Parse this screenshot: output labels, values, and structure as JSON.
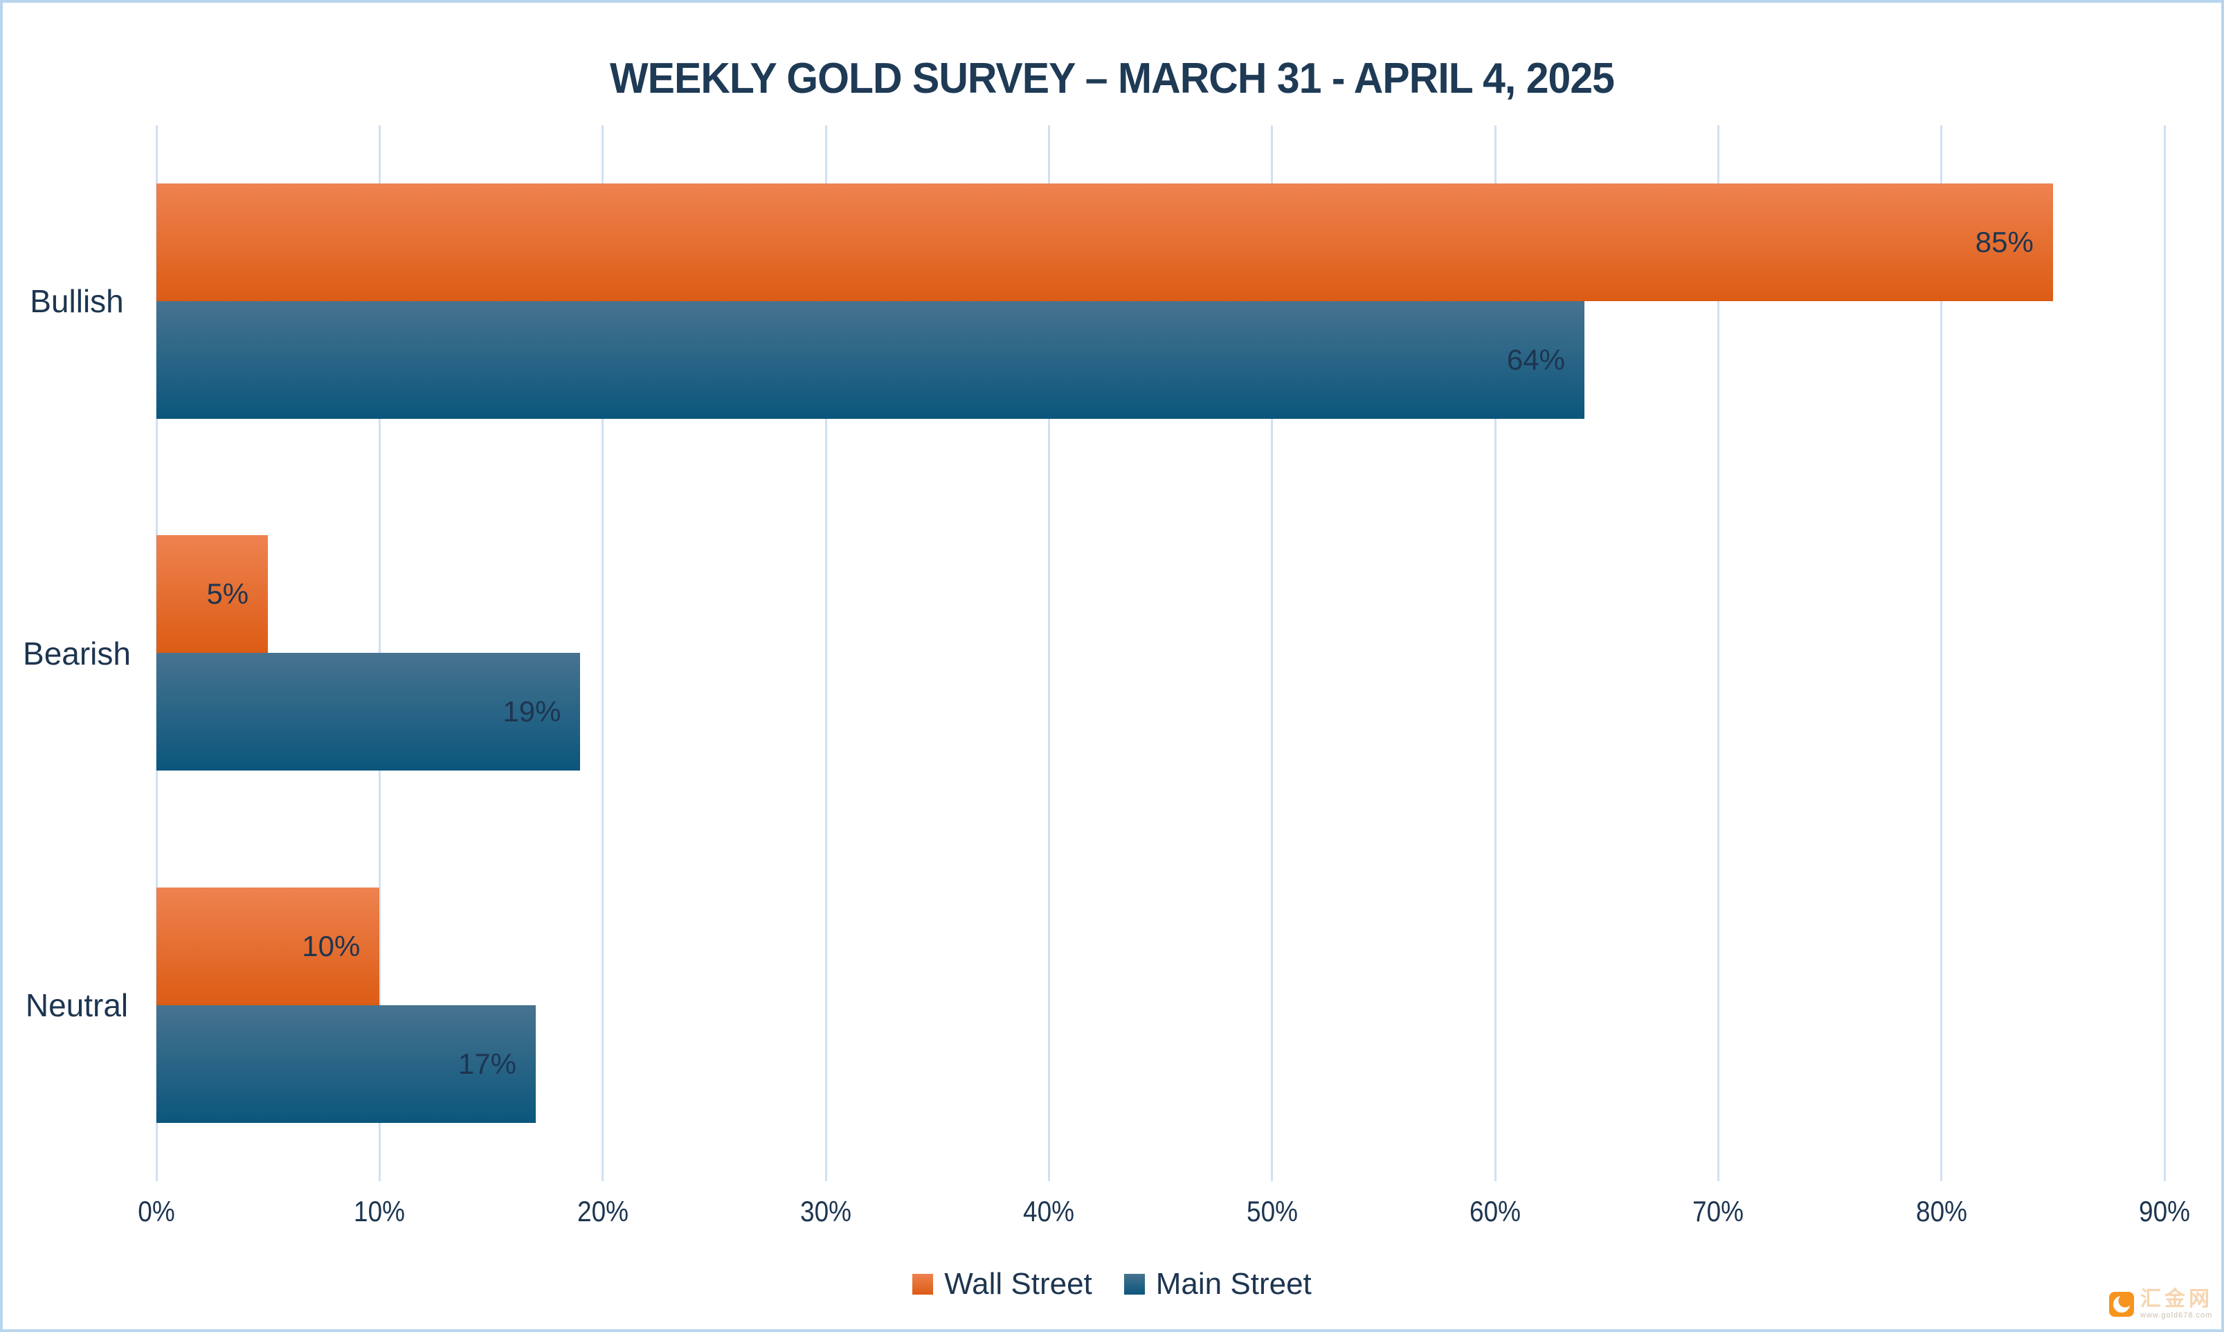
{
  "chart_data": {
    "type": "bar",
    "orientation": "horizontal",
    "title": "WEEKLY GOLD SURVEY – MARCH 31 - APRIL 4, 2025",
    "categories": [
      "Bullish",
      "Bearish",
      "Neutral"
    ],
    "series": [
      {
        "name": "Wall Street",
        "values": [
          85,
          5,
          10
        ],
        "color_top": "#ee8250",
        "color_bottom": "#dc5c14"
      },
      {
        "name": "Main Street",
        "values": [
          64,
          19,
          17
        ],
        "color_top": "#47738f",
        "color_bottom": "#0b567c"
      }
    ],
    "data_labels": [
      [
        "85%",
        "5%",
        "10%"
      ],
      [
        "64%",
        "19%",
        "17%"
      ]
    ],
    "value_suffix": "%",
    "xlim": [
      0,
      90
    ],
    "x_tick_values": [
      0,
      10,
      20,
      30,
      40,
      50,
      60,
      70,
      80,
      90
    ],
    "x_tick_labels": [
      "0%",
      "10%",
      "20%",
      "30%",
      "40%",
      "50%",
      "60%",
      "70%",
      "80%",
      "90%"
    ],
    "grid": true,
    "legend_position": "bottom"
  },
  "colors": {
    "text": "#1d3550",
    "gridline": "#cfe0f2",
    "frame_border": "#b9d5ee",
    "background": "#ffffff",
    "watermark_logo": "#f7941d",
    "watermark_name": "#f6d5b0",
    "watermark_url": "#cfc0b0"
  },
  "watermark": {
    "site_name": "汇金网",
    "site_url": "www.gold678.com"
  }
}
